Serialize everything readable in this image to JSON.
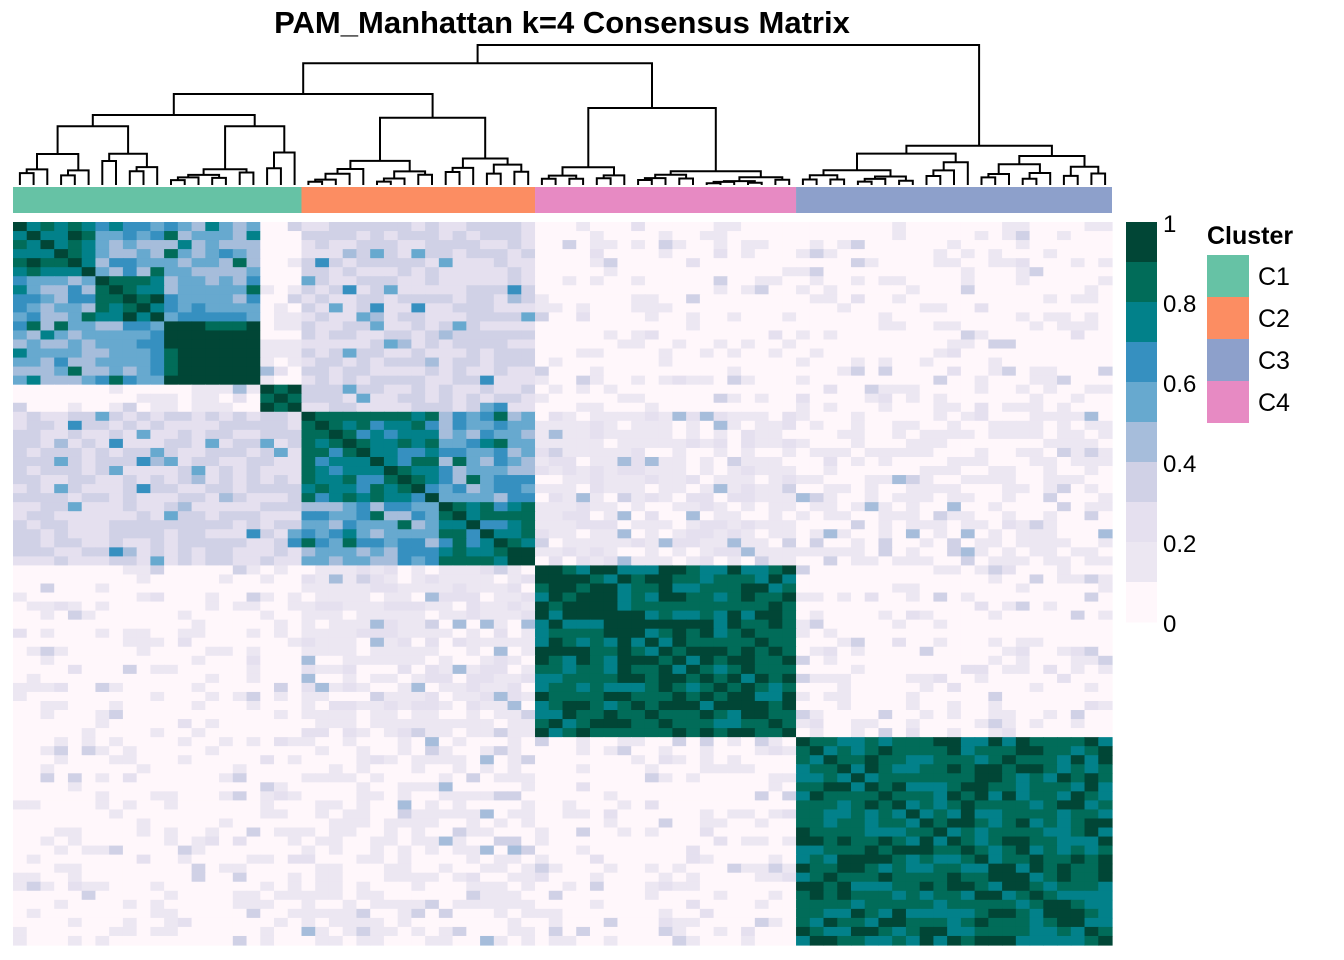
{
  "chart_data": {
    "type": "heatmap",
    "title": "PAM_Manhattan k=4 Consensus Matrix",
    "n_samples": 80,
    "matrix_orientation": "symmetric consensus matrix; rows and columns share the dendrogram order",
    "dendrogram": "top",
    "value_range": [
      0,
      1
    ],
    "colorbar": {
      "ticks": [
        1,
        0.8,
        0.6,
        0.4,
        0.2,
        0
      ],
      "tick_labels": [
        "1",
        "0.8",
        "0.6",
        "0.4",
        "0.2",
        "0"
      ],
      "steps": [
        {
          "min": 0.9,
          "max": 1.0,
          "color": "#014636"
        },
        {
          "min": 0.8,
          "max": 0.9,
          "color": "#016c59"
        },
        {
          "min": 0.7,
          "max": 0.8,
          "color": "#02818a"
        },
        {
          "min": 0.6,
          "max": 0.7,
          "color": "#3690c0"
        },
        {
          "min": 0.5,
          "max": 0.6,
          "color": "#67a9cf"
        },
        {
          "min": 0.4,
          "max": 0.5,
          "color": "#a6bddb"
        },
        {
          "min": 0.3,
          "max": 0.4,
          "color": "#d0d1e6"
        },
        {
          "min": 0.2,
          "max": 0.3,
          "color": "#e5e0ef"
        },
        {
          "min": 0.1,
          "max": 0.2,
          "color": "#ece7f2"
        },
        {
          "min": 0.0,
          "max": 0.1,
          "color": "#fff7fb"
        }
      ]
    },
    "legend": {
      "title": "Cluster",
      "placement": "right",
      "items": [
        {
          "label": "C1",
          "color": "#66c2a5"
        },
        {
          "label": "C2",
          "color": "#fc8d62"
        },
        {
          "label": "C3",
          "color": "#8da0cb"
        },
        {
          "label": "C4",
          "color": "#e78ac3"
        }
      ]
    },
    "column_annotation": [
      {
        "cluster": "C1",
        "color": "#66c2a5",
        "n": 21
      },
      {
        "cluster": "C2",
        "color": "#fc8d62",
        "n": 17
      },
      {
        "cluster": "C4",
        "color": "#e78ac3",
        "n": 19
      },
      {
        "cluster": "C3",
        "color": "#8da0cb",
        "n": 23
      }
    ],
    "sub_blocks": [
      {
        "cluster": "C1",
        "n": 6,
        "mean_within": 0.82
      },
      {
        "cluster": "C1",
        "n": 5,
        "mean_within": 0.82
      },
      {
        "cluster": "C1",
        "n": 7,
        "mean_within": 0.96
      },
      {
        "cluster": "C1",
        "n": 3,
        "mean_within": 0.93
      },
      {
        "cluster": "C2",
        "n": 10,
        "mean_within": 0.78
      },
      {
        "cluster": "C2",
        "n": 7,
        "mean_within": 0.8
      },
      {
        "cluster": "C4",
        "n": 19,
        "mean_within": 0.88
      },
      {
        "cluster": "C3",
        "n": 23,
        "mean_within": 0.84
      }
    ],
    "between_block_means": [
      {
        "pair": [
          "C1-a",
          "C1-b"
        ],
        "value": 0.55
      },
      {
        "pair": [
          "C1-a",
          "C1-c"
        ],
        "value": 0.5
      },
      {
        "pair": [
          "C1-b",
          "C1-c"
        ],
        "value": 0.55
      },
      {
        "pair": [
          "C1-c",
          "C1-d"
        ],
        "value": 0.1
      },
      {
        "pair": [
          "C1",
          "C2"
        ],
        "value": 0.3
      },
      {
        "pair": [
          "C1-d",
          "C2"
        ],
        "value": 0.05
      },
      {
        "pair": [
          "C2-a",
          "C2-b"
        ],
        "value": 0.55
      },
      {
        "pair": [
          "C2",
          "C4"
        ],
        "value": 0.15
      },
      {
        "pair": [
          "C2",
          "C3"
        ],
        "value": 0.1
      },
      {
        "pair": [
          "C4",
          "C3"
        ],
        "value": 0.05
      },
      {
        "pair": [
          "C1",
          "C4"
        ],
        "value": 0.05
      },
      {
        "pair": [
          "C1",
          "C3"
        ],
        "value": 0.06
      }
    ]
  }
}
